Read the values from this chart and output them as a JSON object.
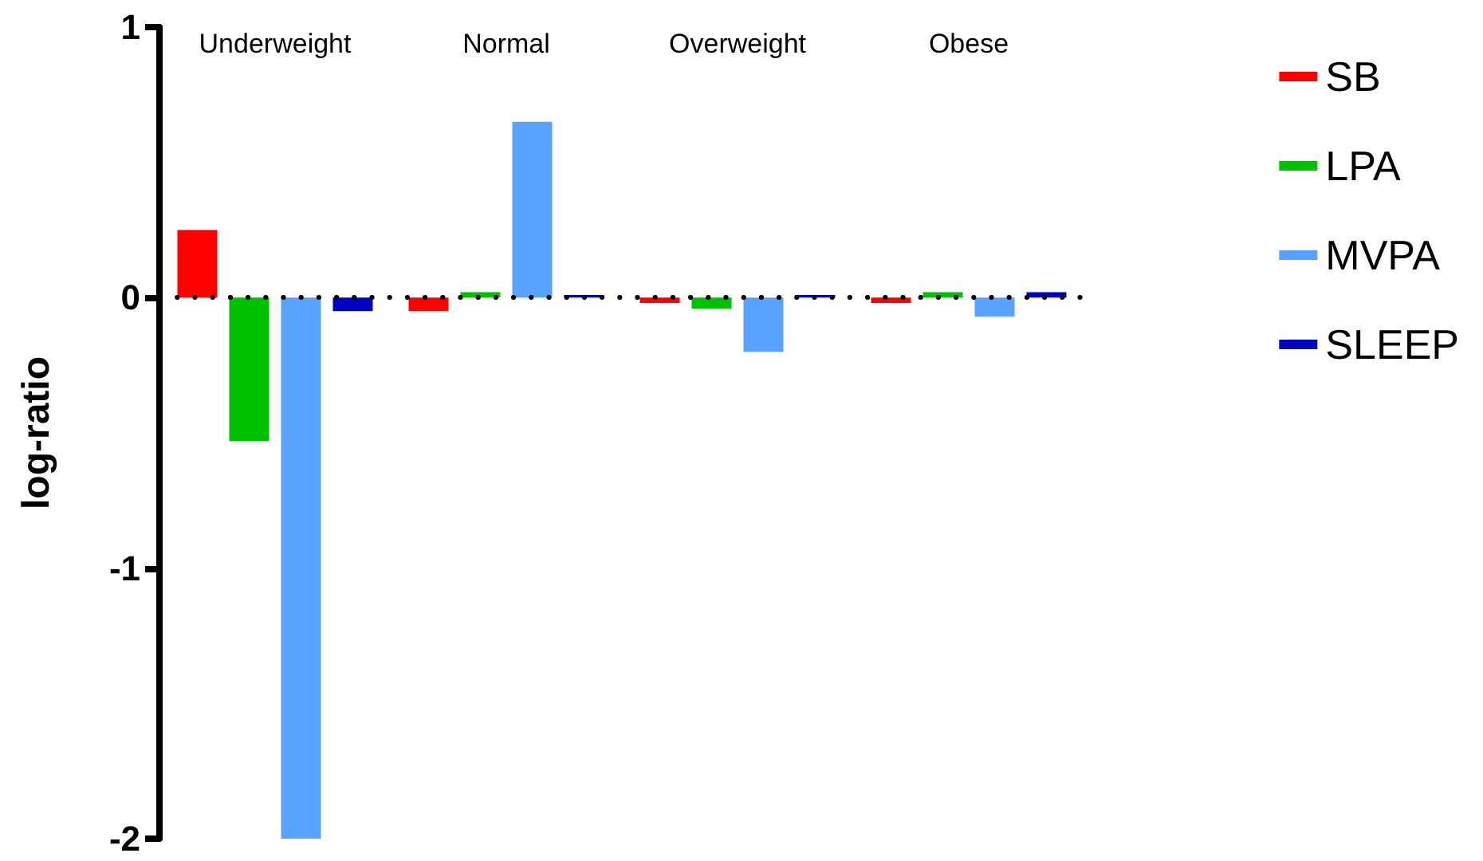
{
  "chart_data": {
    "type": "bar",
    "ylabel": "log-ratio",
    "categories": [
      "Underweight",
      "Normal",
      "Overweight",
      "Obese"
    ],
    "series": [
      {
        "name": "SB",
        "color": "#ff0000",
        "values": [
          0.25,
          -0.05,
          -0.02,
          -0.02
        ]
      },
      {
        "name": "LPA",
        "color": "#00c000",
        "values": [
          -0.53,
          0.02,
          -0.04,
          0.02
        ]
      },
      {
        "name": "MVPA",
        "color": "#5aa2ff",
        "values": [
          -2.0,
          0.65,
          -0.2,
          -0.07
        ]
      },
      {
        "name": "SLEEP",
        "color": "#0000c0",
        "values": [
          -0.05,
          0.01,
          0.01,
          0.02
        ]
      }
    ],
    "ylim": [
      -2,
      1
    ],
    "yticks": [
      -2,
      -1,
      0,
      1
    ],
    "grid": false,
    "legend": "right",
    "ref_lines": [
      {
        "axis": "y",
        "value": 0,
        "line_style": "dotted",
        "color": "#000000"
      }
    ]
  }
}
